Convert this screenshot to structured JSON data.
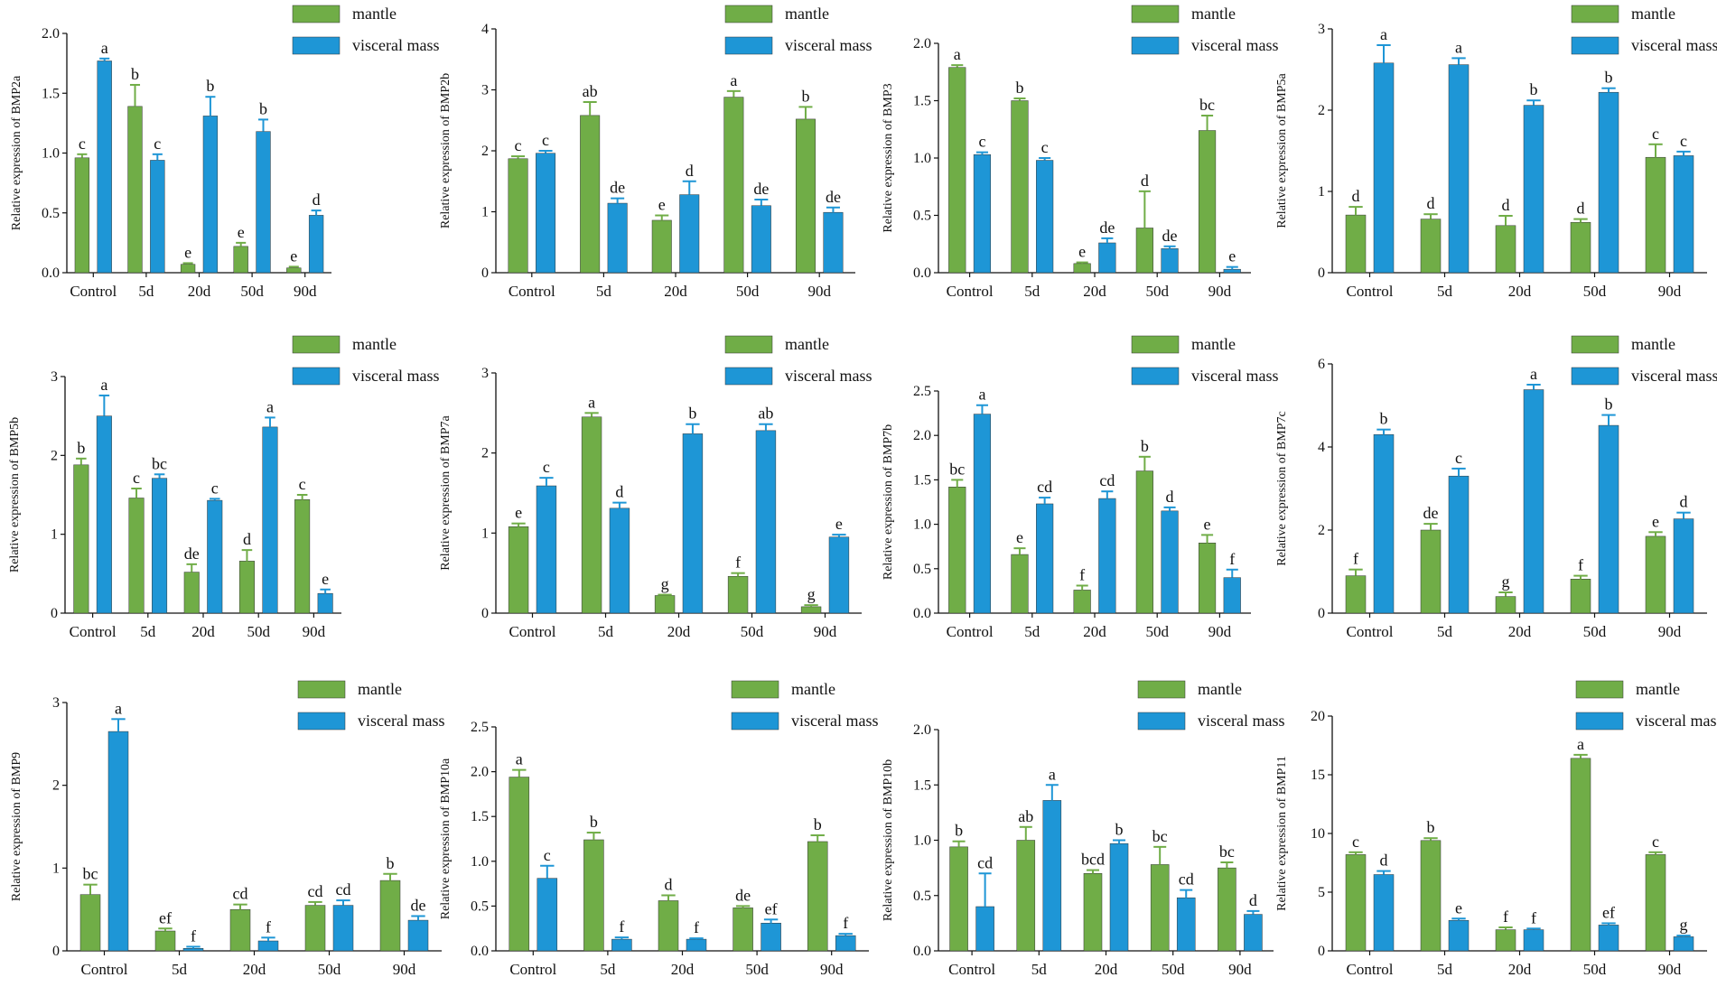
{
  "colors": {
    "mantle": "#70AD47",
    "visceral_mass": "#1E96D6",
    "axis": "#111111"
  },
  "chart_data": [
    {
      "type": "bar",
      "ylabel": "Relative expression of BMP2a",
      "categories": [
        "Control",
        "5d",
        "20d",
        "50d",
        "90d"
      ],
      "ylim": [
        0,
        2.0
      ],
      "yticks": [
        "0.0",
        "0.5",
        "1.0",
        "1.5",
        "2.0"
      ],
      "series": [
        {
          "name": "mantle",
          "values": [
            0.96,
            1.39,
            0.07,
            0.22,
            0.04
          ],
          "errors": [
            0.03,
            0.18,
            0.01,
            0.03,
            0.01
          ],
          "letters": [
            "c",
            "b",
            "e",
            "e",
            "e"
          ]
        },
        {
          "name": "visceral mass",
          "values": [
            1.77,
            0.94,
            1.31,
            1.18,
            0.48
          ],
          "errors": [
            0.02,
            0.05,
            0.16,
            0.1,
            0.04
          ],
          "letters": [
            "a",
            "c",
            "b",
            "b",
            "d"
          ]
        }
      ]
    },
    {
      "type": "bar",
      "ylabel": "Relative expression of BMP2b",
      "categories": [
        "Control",
        "5d",
        "20d",
        "50d",
        "90d"
      ],
      "ylim": [
        0,
        4
      ],
      "yticks": [
        "0",
        "1",
        "2",
        "3",
        "4"
      ],
      "series": [
        {
          "name": "mantle",
          "values": [
            1.87,
            2.58,
            0.86,
            2.88,
            2.52
          ],
          "errors": [
            0.04,
            0.22,
            0.08,
            0.1,
            0.2
          ],
          "letters": [
            "c",
            "ab",
            "e",
            "a",
            "b"
          ]
        },
        {
          "name": "visceral mass",
          "values": [
            1.96,
            1.14,
            1.28,
            1.1,
            0.99
          ],
          "errors": [
            0.04,
            0.08,
            0.22,
            0.1,
            0.08
          ],
          "letters": [
            "c",
            "de",
            "d",
            "de",
            "de"
          ]
        }
      ]
    },
    {
      "type": "bar",
      "ylabel": "Relative expression of BMP3",
      "categories": [
        "Control",
        "5d",
        "20d",
        "50d",
        "90d"
      ],
      "ylim": [
        0,
        2.0
      ],
      "yticks": [
        "0.0",
        "0.5",
        "1.0",
        "1.5",
        "2.0"
      ],
      "series": [
        {
          "name": "mantle",
          "values": [
            1.79,
            1.5,
            0.08,
            0.39,
            1.24
          ],
          "errors": [
            0.02,
            0.02,
            0.01,
            0.32,
            0.13
          ],
          "letters": [
            "a",
            "b",
            "e",
            "d",
            "bc"
          ]
        },
        {
          "name": "visceral mass",
          "values": [
            1.03,
            0.98,
            0.26,
            0.21,
            0.03
          ],
          "errors": [
            0.02,
            0.02,
            0.04,
            0.02,
            0.02
          ],
          "letters": [
            "c",
            "c",
            "de",
            "de",
            "e"
          ]
        }
      ]
    },
    {
      "type": "bar",
      "ylabel": "Relative expression of BMP5a",
      "categories": [
        "Control",
        "5d",
        "20d",
        "50d",
        "90d"
      ],
      "ylim": [
        0,
        3
      ],
      "yticks": [
        "0",
        "1",
        "2",
        "3"
      ],
      "series": [
        {
          "name": "mantle",
          "values": [
            0.71,
            0.66,
            0.58,
            0.62,
            1.42
          ],
          "errors": [
            0.1,
            0.06,
            0.12,
            0.04,
            0.16
          ],
          "letters": [
            "d",
            "d",
            "d",
            "d",
            "c"
          ]
        },
        {
          "name": "visceral mass",
          "values": [
            2.58,
            2.56,
            2.06,
            2.22,
            1.44
          ],
          "errors": [
            0.22,
            0.08,
            0.06,
            0.05,
            0.05
          ],
          "letters": [
            "a",
            "a",
            "b",
            "b",
            "c"
          ]
        }
      ]
    },
    {
      "type": "bar",
      "ylabel": "Relative expression of BMP5b",
      "categories": [
        "Control",
        "5d",
        "20d",
        "50d",
        "90d"
      ],
      "ylim": [
        0,
        3
      ],
      "yticks": [
        "0",
        "1",
        "2",
        "3"
      ],
      "series": [
        {
          "name": "mantle",
          "values": [
            1.88,
            1.46,
            0.52,
            0.66,
            1.44
          ],
          "errors": [
            0.08,
            0.12,
            0.1,
            0.14,
            0.06
          ],
          "letters": [
            "b",
            "c",
            "de",
            "d",
            "c"
          ]
        },
        {
          "name": "visceral mass",
          "values": [
            2.5,
            1.71,
            1.43,
            2.36,
            0.25
          ],
          "errors": [
            0.26,
            0.05,
            0.02,
            0.12,
            0.05
          ],
          "letters": [
            "a",
            "bc",
            "c",
            "a",
            "e"
          ]
        }
      ]
    },
    {
      "type": "bar",
      "ylabel": "Relative expression of BMP7a",
      "categories": [
        "Control",
        "5d",
        "20d",
        "50d",
        "90d"
      ],
      "ylim": [
        0,
        3
      ],
      "yticks": [
        "0",
        "1",
        "2",
        "3"
      ],
      "series": [
        {
          "name": "mantle",
          "values": [
            1.08,
            2.45,
            0.22,
            0.46,
            0.08
          ],
          "errors": [
            0.04,
            0.05,
            0.01,
            0.04,
            0.02
          ],
          "letters": [
            "e",
            "a",
            "g",
            "f",
            "g"
          ]
        },
        {
          "name": "visceral mass",
          "values": [
            1.59,
            1.31,
            2.24,
            2.28,
            0.95
          ],
          "errors": [
            0.1,
            0.07,
            0.12,
            0.08,
            0.03
          ],
          "letters": [
            "c",
            "d",
            "b",
            "ab",
            "e"
          ]
        }
      ]
    },
    {
      "type": "bar",
      "ylabel": "Relative expression of BMP7b",
      "categories": [
        "Control",
        "5d",
        "20d",
        "50d",
        "90d"
      ],
      "ylim": [
        0,
        2.5
      ],
      "yticks": [
        "0.0",
        "0.5",
        "1.0",
        "1.5",
        "2.0",
        "2.5"
      ],
      "series": [
        {
          "name": "mantle",
          "values": [
            1.42,
            0.66,
            0.26,
            1.6,
            0.79
          ],
          "errors": [
            0.08,
            0.07,
            0.05,
            0.16,
            0.09
          ],
          "letters": [
            "bc",
            "e",
            "f",
            "b",
            "e"
          ]
        },
        {
          "name": "visceral mass",
          "values": [
            2.24,
            1.23,
            1.29,
            1.15,
            0.4
          ],
          "errors": [
            0.1,
            0.07,
            0.08,
            0.04,
            0.09
          ],
          "letters": [
            "a",
            "cd",
            "cd",
            "d",
            "f"
          ]
        }
      ]
    },
    {
      "type": "bar",
      "ylabel": "Relative expression of BMP7c",
      "categories": [
        "Control",
        "5d",
        "20d",
        "50d",
        "90d"
      ],
      "ylim": [
        0,
        6
      ],
      "yticks": [
        "0",
        "2",
        "4",
        "6"
      ],
      "series": [
        {
          "name": "mantle",
          "values": [
            0.9,
            2.0,
            0.4,
            0.82,
            1.85
          ],
          "errors": [
            0.15,
            0.15,
            0.1,
            0.08,
            0.1
          ],
          "letters": [
            "f",
            "de",
            "g",
            "f",
            "e"
          ]
        },
        {
          "name": "visceral mass",
          "values": [
            4.3,
            3.3,
            5.38,
            4.52,
            2.27
          ],
          "errors": [
            0.12,
            0.18,
            0.12,
            0.25,
            0.15
          ],
          "letters": [
            "b",
            "c",
            "a",
            "b",
            "d"
          ]
        }
      ]
    },
    {
      "type": "bar",
      "ylabel": "Relative expression of BMP9",
      "categories": [
        "Control",
        "5d",
        "20d",
        "50d",
        "90d"
      ],
      "ylim": [
        0,
        3
      ],
      "yticks": [
        "0",
        "1",
        "2",
        "3"
      ],
      "series": [
        {
          "name": "mantle",
          "values": [
            0.68,
            0.24,
            0.5,
            0.55,
            0.85
          ],
          "errors": [
            0.12,
            0.03,
            0.06,
            0.04,
            0.08
          ],
          "letters": [
            "bc",
            "ef",
            "cd",
            "cd",
            "b"
          ]
        },
        {
          "name": "visceral mass",
          "values": [
            2.65,
            0.03,
            0.12,
            0.55,
            0.37
          ],
          "errors": [
            0.15,
            0.02,
            0.04,
            0.06,
            0.05
          ],
          "letters": [
            "a",
            "f",
            "f",
            "cd",
            "de"
          ]
        }
      ]
    },
    {
      "type": "bar",
      "ylabel": "Relative expression of BMP10a",
      "categories": [
        "Control",
        "5d",
        "20d",
        "50d",
        "90d"
      ],
      "ylim": [
        0,
        2.5
      ],
      "yticks": [
        "0.0",
        "0.5",
        "1.0",
        "1.5",
        "2.0",
        "2.5"
      ],
      "series": [
        {
          "name": "mantle",
          "values": [
            1.94,
            1.24,
            0.56,
            0.48,
            1.22
          ],
          "errors": [
            0.08,
            0.08,
            0.06,
            0.02,
            0.07
          ],
          "letters": [
            "a",
            "b",
            "d",
            "de",
            "b"
          ]
        },
        {
          "name": "visceral mass",
          "values": [
            0.81,
            0.13,
            0.13,
            0.31,
            0.17
          ],
          "errors": [
            0.14,
            0.02,
            0.01,
            0.04,
            0.02
          ],
          "letters": [
            "c",
            "f",
            "f",
            "ef",
            "f"
          ]
        }
      ]
    },
    {
      "type": "bar",
      "ylabel": "Relative expression of BMP10b",
      "categories": [
        "Control",
        "5d",
        "20d",
        "50d",
        "90d"
      ],
      "ylim": [
        0,
        2.0
      ],
      "yticks": [
        "0.0",
        "0.5",
        "1.0",
        "1.5",
        "2.0"
      ],
      "series": [
        {
          "name": "mantle",
          "values": [
            0.94,
            1.0,
            0.7,
            0.78,
            0.75
          ],
          "errors": [
            0.05,
            0.12,
            0.03,
            0.16,
            0.05
          ],
          "letters": [
            "b",
            "ab",
            "bcd",
            "bc",
            "bc"
          ]
        },
        {
          "name": "visceral mass",
          "values": [
            0.4,
            1.36,
            0.97,
            0.48,
            0.33
          ],
          "errors": [
            0.3,
            0.14,
            0.03,
            0.07,
            0.03
          ],
          "letters": [
            "cd",
            "a",
            "b",
            "cd",
            "d"
          ]
        }
      ]
    },
    {
      "type": "bar",
      "ylabel": "Relative expression of BMP11",
      "categories": [
        "Control",
        "5d",
        "20d",
        "50d",
        "90d"
      ],
      "ylim": [
        0,
        20
      ],
      "yticks": [
        "0",
        "5",
        "10",
        "15",
        "20"
      ],
      "series": [
        {
          "name": "mantle",
          "values": [
            8.2,
            9.4,
            1.8,
            16.4,
            8.2
          ],
          "errors": [
            0.2,
            0.2,
            0.2,
            0.3,
            0.2
          ],
          "letters": [
            "c",
            "b",
            "f",
            "a",
            "c"
          ]
        },
        {
          "name": "visceral mass",
          "values": [
            6.5,
            2.6,
            1.8,
            2.2,
            1.2
          ],
          "errors": [
            0.3,
            0.15,
            0.1,
            0.15,
            0.1
          ],
          "letters": [
            "d",
            "e",
            "f",
            "ef",
            "g"
          ]
        }
      ]
    }
  ]
}
